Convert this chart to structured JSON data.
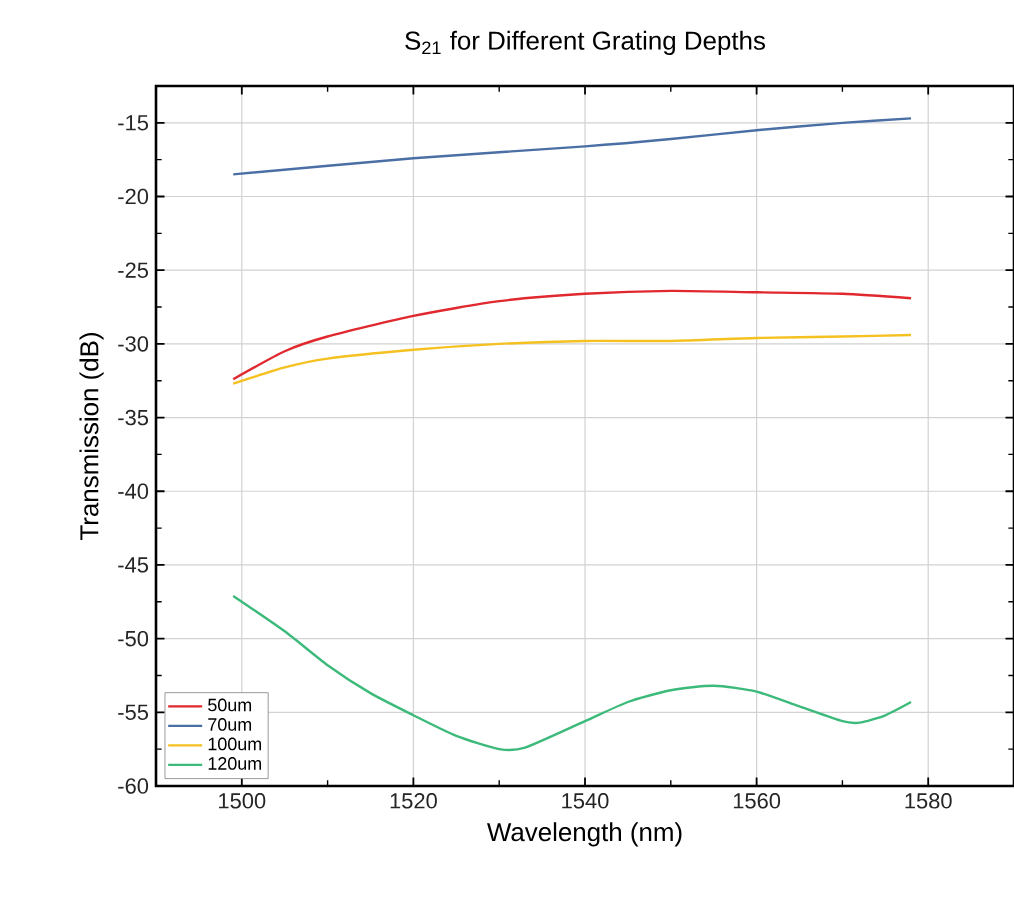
{
  "chart_data": {
    "type": "line",
    "title": "S$_{21}$ for Different Grating Depths",
    "xlabel": "Wavelength (nm)",
    "ylabel": "Transmission (dB)",
    "xlim": [
      1490,
      1590
    ],
    "ylim": [
      -60,
      -12.5
    ],
    "xticks": [
      1500,
      1520,
      1540,
      1560,
      1580
    ],
    "yticks": [
      -15,
      -20,
      -25,
      -30,
      -35,
      -40,
      -45,
      -50,
      -55,
      -60
    ],
    "grid": true,
    "legend": "bottom left",
    "marker": "none",
    "line_style": "solid",
    "series": [
      {
        "name": "50um",
        "color": "#e0282e",
        "x": [
          1499,
          1505,
          1510,
          1520,
          1530,
          1540,
          1550,
          1560,
          1570,
          1578
        ],
        "values": [
          -32.4,
          -30.5,
          -29.5,
          -28.1,
          -27.1,
          -26.6,
          -26.4,
          -26.5,
          -26.6,
          -26.9
        ]
      },
      {
        "name": "70um",
        "color": "#4a6fa5",
        "x": [
          1499,
          1520,
          1540,
          1550,
          1560,
          1570,
          1578
        ],
        "values": [
          -18.5,
          -17.4,
          -16.6,
          -16.1,
          -15.5,
          -15.0,
          -14.7
        ]
      },
      {
        "name": "100um",
        "color": "#f5c120",
        "x": [
          1499,
          1505,
          1510,
          1520,
          1530,
          1540,
          1550,
          1560,
          1570,
          1578
        ],
        "values": [
          -32.7,
          -31.6,
          -31.0,
          -30.4,
          -30.0,
          -29.8,
          -29.8,
          -29.6,
          -29.5,
          -29.4
        ]
      },
      {
        "name": "120um",
        "color": "#3cba7a",
        "x": [
          1499,
          1505,
          1510,
          1515,
          1520,
          1525,
          1530,
          1533,
          1540,
          1545,
          1550,
          1555,
          1560,
          1565,
          1570,
          1572,
          1575,
          1578
        ],
        "values": [
          -47.1,
          -49.5,
          -51.8,
          -53.7,
          -55.2,
          -56.6,
          -57.5,
          -57.4,
          -55.6,
          -54.3,
          -53.5,
          -53.2,
          -53.6,
          -54.6,
          -55.6,
          -55.7,
          -55.2,
          -54.3
        ]
      }
    ]
  }
}
